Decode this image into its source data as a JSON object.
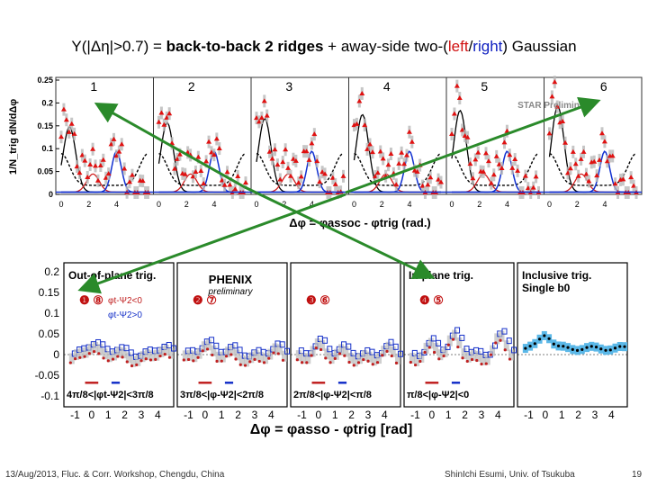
{
  "title": {
    "prefix": "Y(|Δη|>0.7) = ",
    "bold": "back-to-back 2 ridges",
    "middle": " + away-side two-(",
    "left": "left",
    "slash": "/",
    "right": "right",
    "suffix": ") Gaussian"
  },
  "star_plot": {
    "ylabel": "1/N_trig dN/dΔφ",
    "ytick_labels": [
      "0.25",
      "0.2",
      "0.15",
      "0.1",
      "0.05",
      "0"
    ],
    "xtick_labels": [
      "0",
      "2",
      "4"
    ],
    "panel_labels": [
      "1",
      "2",
      "3",
      "4",
      "5",
      "6"
    ],
    "preliminary": "STAR Preliminary",
    "xlabel": "Δφ = φassoc - φtrig (rad.)",
    "colors": {
      "data": "#e01010",
      "black_fit": "#000000",
      "blue_fit": "#1030d0",
      "red_fit": "#d02020",
      "band": "#b8b8b8"
    }
  },
  "phenix_plot": {
    "ytick_labels": [
      "0.2",
      "0.15",
      "0.1",
      "0.05",
      "0",
      "-0.05",
      "-0.1"
    ],
    "xtick_labels": [
      "-1",
      "0",
      "1",
      "2",
      "3",
      "4"
    ],
    "xlabel": "Δφ = φasso - φtrig [rad]",
    "logo": "PHENIX",
    "logo_sub": "preliminary",
    "legend": [
      "φt-Ψ2<0",
      "φt-Ψ2>0"
    ],
    "panels": [
      {
        "label": "Out-of-plane trig.",
        "numbers": "❶ ⑧",
        "range": "4π/8<|φt-Ψ2|<3π/8"
      },
      {
        "label": "",
        "numbers": "❷ ⑦",
        "range": "3π/8<|φ-Ψ2|<2π/8"
      },
      {
        "label": "",
        "numbers": "❸ ⑥",
        "range": "2π/8<|φ-Ψ2|<π/8"
      },
      {
        "label": "In-plane trig.",
        "numbers": "❹ ⑤",
        "range": "π/8<|φ-Ψ2|<0"
      },
      {
        "label": "Inclusive trig.",
        "sublabel": "Single b0",
        "numbers": "",
        "range": ""
      }
    ]
  },
  "footer": {
    "left": "13/Aug/2013, Fluc. & Corr. Workshop, Chengdu, China",
    "center": "ShinIchi Esumi, Univ. of Tsukuba",
    "page": "19"
  },
  "arrow_color": "#2a8a2a"
}
